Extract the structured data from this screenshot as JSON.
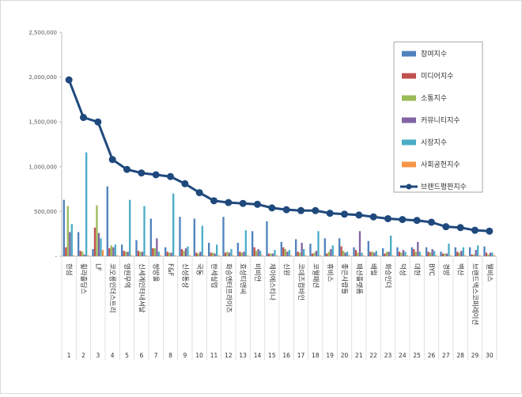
{
  "chart_data": {
    "type": "bar",
    "title": "",
    "xlabel": "",
    "ylabel": "",
    "ylim": [
      0,
      2500000
    ],
    "ytick_values": [
      0,
      500000,
      1000000,
      1500000,
      2000000,
      2500000
    ],
    "ytick_labels": [
      "-",
      "500,000",
      "1,000,000",
      "1,500,000",
      "2,000,000",
      "2,500,000"
    ],
    "ranks": [
      "1",
      "2",
      "3",
      "4",
      "5",
      "6",
      "7",
      "8",
      "9",
      "10",
      "11",
      "12",
      "13",
      "14",
      "15",
      "16",
      "17",
      "18",
      "19",
      "20",
      "21",
      "22",
      "23",
      "24",
      "25",
      "26",
      "27",
      "28",
      "29",
      "30"
    ],
    "categories": [
      "한섬",
      "휠라홀딩스",
      "LF",
      "코오롱인더스트리",
      "영원무역",
      "신세계인터내셔날",
      "쌍방울",
      "F&F",
      "신성통상",
      "국동",
      "한세실업",
      "화승엔터프라이즈",
      "효성티앤씨",
      "비비안",
      "제이에스티나",
      "신원",
      "코데즈컴바인",
      "코웰패션",
      "휴비스",
      "좋은사람들",
      "패션플랫폼",
      "배럴",
      "화승인더",
      "덕성",
      "대현",
      "BYC",
      "경방",
      "백산",
      "브랜드엑스코퍼레이션",
      "웰비스"
    ],
    "series": [
      {
        "name": "참여지수",
        "color": "#4f81bd",
        "type": "bar",
        "values": [
          630000,
          270000,
          80000,
          780000,
          130000,
          180000,
          420000,
          100000,
          440000,
          420000,
          150000,
          440000,
          150000,
          280000,
          390000,
          160000,
          190000,
          140000,
          200000,
          200000,
          100000,
          170000,
          90000,
          100000,
          100000,
          100000,
          50000,
          100000,
          100000,
          110000
        ]
      },
      {
        "name": "미디어지수",
        "color": "#c0504d",
        "type": "bar",
        "values": [
          100000,
          60000,
          320000,
          90000,
          60000,
          60000,
          90000,
          50000,
          80000,
          40000,
          40000,
          40000,
          50000,
          100000,
          30000,
          100000,
          50000,
          30000,
          30000,
          110000,
          70000,
          50000,
          30000,
          50000,
          80000,
          50000,
          30000,
          50000,
          20000,
          40000
        ]
      },
      {
        "name": "소통지수",
        "color": "#9bbb59",
        "type": "bar",
        "values": [
          560000,
          50000,
          570000,
          120000,
          50000,
          50000,
          90000,
          40000,
          60000,
          30000,
          40000,
          50000,
          40000,
          60000,
          30000,
          80000,
          40000,
          40000,
          50000,
          60000,
          40000,
          50000,
          50000,
          40000,
          50000,
          40000,
          30000,
          40000,
          20000,
          20000
        ]
      },
      {
        "name": "커뮤니티지수",
        "color": "#8064a2",
        "type": "bar",
        "values": [
          270000,
          20000,
          260000,
          100000,
          50000,
          50000,
          200000,
          40000,
          90000,
          50000,
          30000,
          40000,
          50000,
          80000,
          30000,
          50000,
          150000,
          60000,
          80000,
          40000,
          280000,
          40000,
          50000,
          70000,
          160000,
          80000,
          30000,
          60000,
          70000,
          40000
        ]
      },
      {
        "name": "시장지수",
        "color": "#4bacc6",
        "type": "bar",
        "values": [
          360000,
          1160000,
          200000,
          130000,
          630000,
          560000,
          50000,
          700000,
          110000,
          340000,
          130000,
          80000,
          290000,
          60000,
          70000,
          70000,
          80000,
          280000,
          120000,
          50000,
          40000,
          60000,
          230000,
          50000,
          50000,
          60000,
          140000,
          100000,
          120000,
          40000
        ]
      },
      {
        "name": "사회공헌지수",
        "color": "#f79646",
        "type": "bar",
        "values": [
          10000,
          10000,
          70000,
          10000,
          10000,
          10000,
          10000,
          10000,
          10000,
          10000,
          10000,
          10000,
          10000,
          10000,
          10000,
          10000,
          10000,
          10000,
          10000,
          10000,
          10000,
          10000,
          10000,
          10000,
          10000,
          10000,
          10000,
          10000,
          10000,
          10000
        ]
      },
      {
        "name": "브랜드평판지수",
        "color": "#1f497d",
        "type": "line",
        "values": [
          1970000,
          1550000,
          1500000,
          1080000,
          970000,
          930000,
          910000,
          890000,
          810000,
          710000,
          620000,
          600000,
          590000,
          580000,
          540000,
          520000,
          510000,
          510000,
          480000,
          470000,
          460000,
          440000,
          420000,
          410000,
          400000,
          380000,
          330000,
          320000,
          290000,
          280000
        ]
      }
    ],
    "legend_position": "top-right",
    "grid": false
  }
}
